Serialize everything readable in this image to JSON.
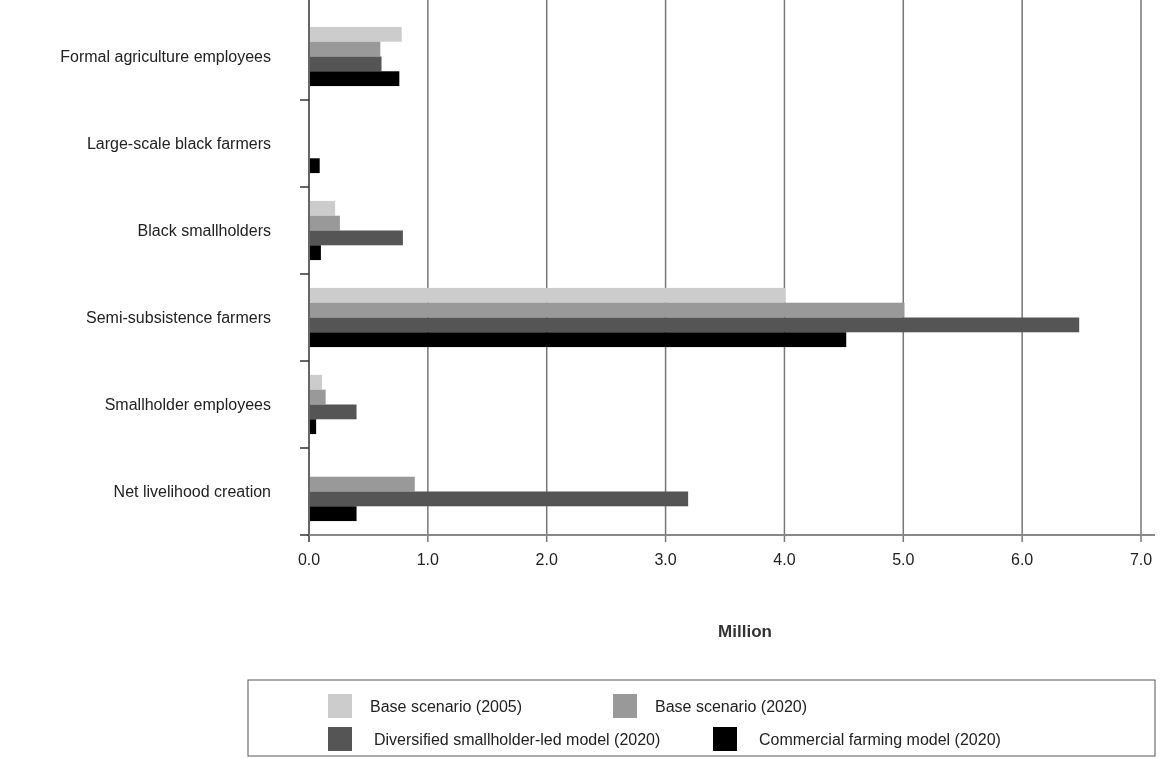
{
  "chart_data": {
    "type": "bar",
    "orientation": "horizontal",
    "xlabel": "Million",
    "categories": [
      "Formal agriculture employees",
      "Large-scale black farmers",
      "Black smallholders",
      "Semi-subsistence farmers",
      "Smallholder employees",
      "Net livelihood creation"
    ],
    "series": [
      {
        "name": "Base scenario (2005)",
        "color": "#cccccc",
        "values": [
          0.78,
          0,
          0.22,
          4.01,
          0.11,
          null
        ]
      },
      {
        "name": "Base scenario (2020)",
        "color": "#999999",
        "values": [
          0.6,
          0,
          0.26,
          5.01,
          0.14,
          0.89
        ]
      },
      {
        "name": "Diversified smallholder-led model (2020)",
        "color": "#555555",
        "values": [
          0.61,
          0,
          0.79,
          6.48,
          0.4,
          3.19
        ]
      },
      {
        "name": "Commercial farming model (2020)",
        "color": "#000000",
        "values": [
          0.76,
          0.09,
          0.1,
          4.52,
          0.06,
          0.4
        ]
      }
    ],
    "xlim": [
      0,
      7
    ],
    "xticks": [
      {
        "value": 0,
        "label": "0.0"
      },
      {
        "value": 1,
        "label": "1.0"
      },
      {
        "value": 2,
        "label": "2.0"
      },
      {
        "value": 3,
        "label": "3.0"
      },
      {
        "value": 4,
        "label": "4.0"
      },
      {
        "value": 5,
        "label": "5.0"
      },
      {
        "value": 6,
        "label": "6.0"
      },
      {
        "value": 7,
        "label": "7.0"
      }
    ],
    "grid": "x",
    "legend": "bottom"
  }
}
